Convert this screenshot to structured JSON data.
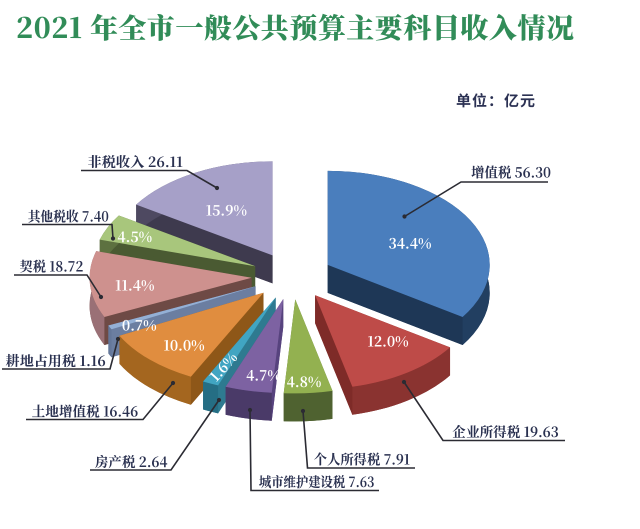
{
  "title": "2021 年全市一般公共预算主要科目收入情况",
  "unit_label": "单位：亿元",
  "colors": {
    "background": "#ffffff",
    "title_text": "#318c58",
    "unit_text": "#2b3153",
    "callout_text": "#2a3150",
    "leader_line": "#2b2b33",
    "percent_text": "#ffffff"
  },
  "chart_data": {
    "type": "pie",
    "style": "3d-exploded",
    "title": "2021 年全市一般公共预算主要科目收入情况",
    "unit": "亿元",
    "start_angle_deg": 0,
    "clockwise": true,
    "total": 163.96,
    "slices": [
      {
        "label": "增值税",
        "value": 56.3,
        "percent": "34.4%",
        "color": "#4a7ebd",
        "side_color": "#223f61",
        "edge_color": "#1e3756"
      },
      {
        "label": "企业所得税",
        "value": 19.63,
        "percent": "12.0%",
        "color": "#be4b48",
        "side_color": "#8a3330",
        "edge_color": "#7e2b28"
      },
      {
        "label": "个人所得税",
        "value": 7.91,
        "percent": "4.8%",
        "color": "#93b150",
        "side_color": "#4f6230",
        "edge_color": "#556831"
      },
      {
        "label": "城市维护建设税",
        "value": 7.63,
        "percent": "4.7%",
        "color": "#7d62a2",
        "side_color": "#4a3a68",
        "edge_color": "#57437e"
      },
      {
        "label": "房产税",
        "value": 2.64,
        "percent": "1.6%",
        "color": "#41a5c2",
        "side_color": "#256e84",
        "edge_color": "#2e7a90"
      },
      {
        "label": "土地增值税",
        "value": 16.46,
        "percent": "10.0%",
        "color": "#e08d3f",
        "side_color": "#a4661f",
        "edge_color": "#8e5718"
      },
      {
        "label": "耕地占用税",
        "value": 1.16,
        "percent": "0.7%",
        "color": "#94b0d6",
        "side_color": "#64779a",
        "edge_color": "#6b7ea1"
      },
      {
        "label": "契税",
        "value": 18.72,
        "percent": "11.4%",
        "color": "#ce918e",
        "side_color": "#9a7076",
        "edge_color": "#6e4a45"
      },
      {
        "label": "其他税收",
        "value": 7.4,
        "percent": "4.5%",
        "color": "#a8c67c",
        "side_color": "#5d7140",
        "edge_color": "#4a5a32"
      },
      {
        "label": "非税收入",
        "value": 26.11,
        "percent": "15.9%",
        "color": "#a6a0c8",
        "side_color": "#4e4961",
        "edge_color": "#3e3a4e"
      }
    ]
  }
}
